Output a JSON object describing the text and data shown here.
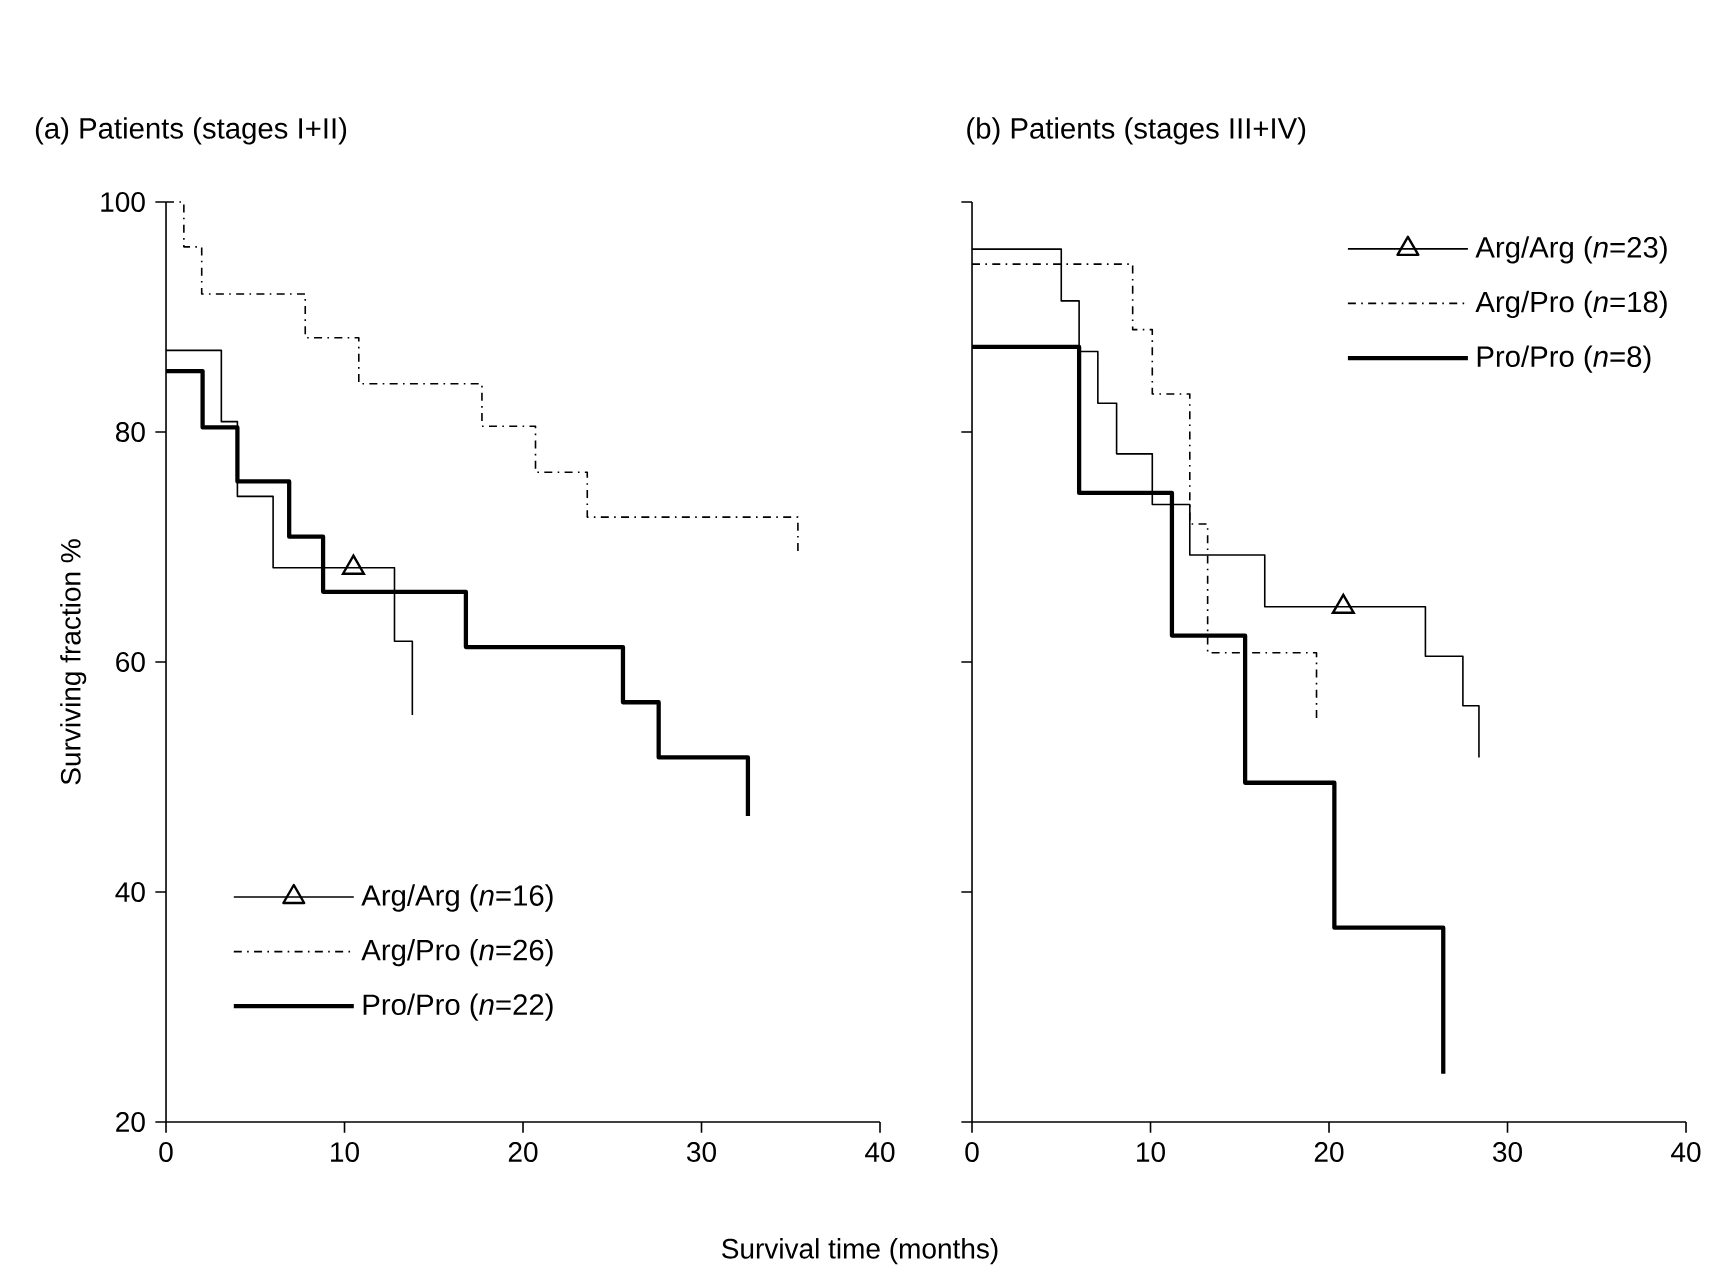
{
  "chart_data": [
    {
      "type": "step",
      "title": "(a) Patients (stages I+II)",
      "xlabel": "Survival time (months)",
      "ylabel": "Surviving fraction %",
      "xlim": [
        0,
        40
      ],
      "xticks": [
        0,
        10,
        20,
        30,
        40
      ],
      "ylim": [
        20,
        100
      ],
      "yticks": [
        20,
        40,
        60,
        80,
        100
      ],
      "legend": "bottom left",
      "series": [
        {
          "name": "Arg/Arg (*n*=16)",
          "color": "#000000",
          "line_style": "solid",
          "x": [
            0,
            3.1,
            4.0,
            6.0,
            12.8,
            13.8
          ],
          "values": [
            87.1,
            80.9,
            74.4,
            68.2,
            61.8,
            55.4
          ]
        },
        {
          "type": "scatter",
          "color": "#000000",
          "marker": "triangle",
          "x": [
            10.5
          ],
          "values": [
            68.2
          ]
        },
        {
          "name": "Arg/Pro (*n*=26)",
          "color": "#000000",
          "line_style": "dashdot",
          "x": [
            0,
            1.0,
            2.0,
            7.8,
            10.8,
            17.7,
            20.7,
            23.6,
            35.4
          ],
          "values": [
            100,
            96.1,
            92,
            88.2,
            84.2,
            80.5,
            76.5,
            72.6,
            69.2
          ]
        },
        {
          "name": "Pro/Pro (*n*=22)",
          "color": "#000000",
          "line_style": "solid",
          "x": [
            0,
            2.05,
            4.0,
            6.9,
            8.8,
            16.8,
            25.6,
            27.6,
            32.6
          ],
          "values": [
            85.3,
            80.4,
            75.7,
            70.9,
            66.1,
            61.3,
            56.5,
            51.7,
            46.6
          ]
        }
      ]
    },
    {
      "type": "step",
      "title": "(b) Patients (stages III+IV)",
      "xlim": [
        0,
        40
      ],
      "xticks": [
        0,
        10,
        20,
        30,
        40
      ],
      "ylim": [
        20,
        100
      ],
      "yticks": [
        20,
        40,
        60,
        80,
        100
      ],
      "tick_labels": "x",
      "legend": "top right",
      "series": [
        {
          "name": "Arg/Arg (*n*=23)",
          "color": "#000000",
          "line_style": "solid",
          "x": [
            0,
            5.0,
            6.0,
            7.05,
            8.1,
            10.1,
            12.2,
            16.4,
            25.4,
            27.5,
            28.4
          ],
          "values": [
            95.9,
            91.4,
            87.0,
            82.5,
            78.1,
            73.7,
            69.3,
            64.8,
            60.5,
            56.2,
            51.7
          ]
        },
        {
          "type": "scatter",
          "color": "#000000",
          "marker": "triangle",
          "x": [
            20.8
          ],
          "values": [
            64.8
          ]
        },
        {
          "name": "Arg/Pro (*n*=18)",
          "color": "#000000",
          "line_style": "dashdot",
          "x": [
            0,
            9.0,
            10.1,
            12.2,
            13.2,
            19.3
          ],
          "values": [
            94.6,
            88.9,
            83.3,
            72.0,
            60.8,
            54.9
          ]
        },
        {
          "name": "Pro/Pro (*n*=8)",
          "color": "#000000",
          "line_style": "solid",
          "x": [
            0,
            6.0,
            11.2,
            15.3,
            20.3,
            26.4
          ],
          "values": [
            87.4,
            74.7,
            62.3,
            49.5,
            36.9,
            24.2
          ]
        }
      ]
    }
  ]
}
